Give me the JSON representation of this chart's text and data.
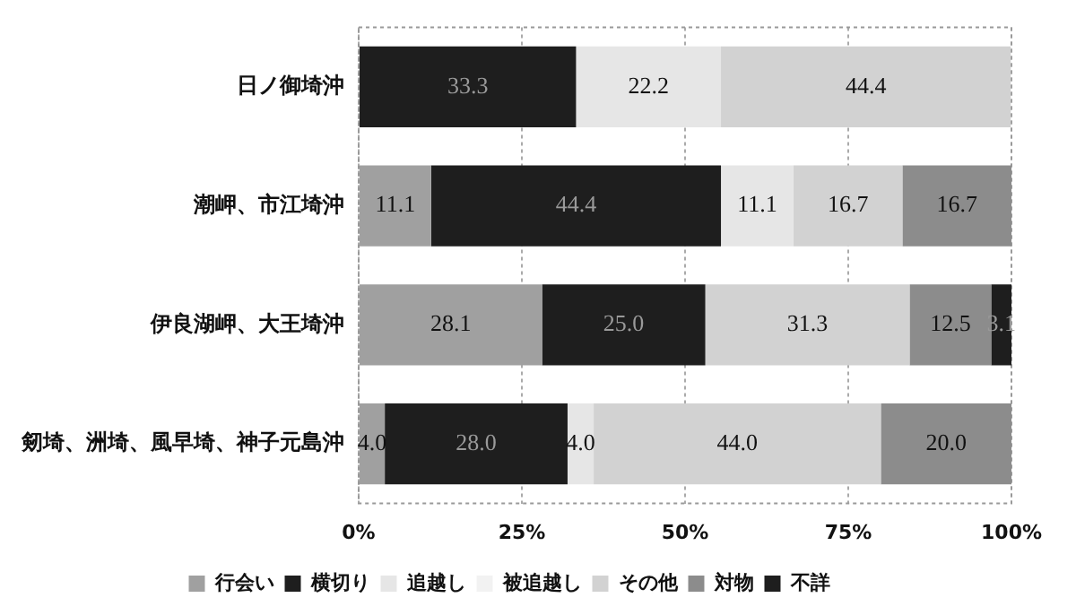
{
  "chart_data": {
    "type": "bar",
    "orientation": "horizontal",
    "stacked": true,
    "categories": [
      "日ノ御埼沖",
      "潮岬、市江埼沖",
      "伊良湖岬、大王埼沖",
      "剱埼、洲埼、風早埼、神子元島沖"
    ],
    "series": [
      {
        "name": "行会い",
        "color": "#a0a0a0",
        "values": [
          0,
          11.1,
          28.1,
          4.0
        ],
        "value_labels": [
          null,
          "11.1",
          "28.1",
          "4.0"
        ]
      },
      {
        "name": "横切り",
        "color": "#1e1e1e",
        "values": [
          33.3,
          44.4,
          25.0,
          28.0
        ],
        "value_labels": [
          "33.3",
          "44.4",
          "25.0",
          "28.0"
        ]
      },
      {
        "name": "追越し",
        "color": "#e6e6e6",
        "values": [
          22.2,
          11.1,
          0,
          4.0
        ],
        "value_labels": [
          "22.2",
          "11.1",
          null,
          "4.0"
        ]
      },
      {
        "name": "被追越し",
        "color": "#f2f2f2",
        "values": [
          0,
          0,
          0,
          0
        ],
        "value_labels": [
          null,
          null,
          null,
          null
        ]
      },
      {
        "name": "その他",
        "color": "#d2d2d2",
        "values": [
          44.4,
          16.7,
          31.3,
          44.0
        ],
        "value_labels": [
          "44.4",
          "16.7",
          "31.3",
          "44.0"
        ]
      },
      {
        "name": "対物",
        "color": "#8c8c8c",
        "values": [
          0,
          16.7,
          12.5,
          20.0
        ],
        "value_labels": [
          null,
          "16.7",
          "12.5",
          "20.0"
        ]
      },
      {
        "name": "不詳",
        "color": "#1e1e1e",
        "values": [
          0,
          0,
          3.1,
          0
        ],
        "value_labels": [
          null,
          null,
          "3.1",
          null
        ]
      }
    ],
    "xlim": [
      0,
      100
    ],
    "xticks": [
      {
        "value": 0,
        "label": "0%"
      },
      {
        "value": 25,
        "label": "25%"
      },
      {
        "value": 50,
        "label": "50%"
      },
      {
        "value": 75,
        "label": "75%"
      },
      {
        "value": 100,
        "label": "100%"
      }
    ],
    "grid": "x",
    "legend": "bottom"
  }
}
